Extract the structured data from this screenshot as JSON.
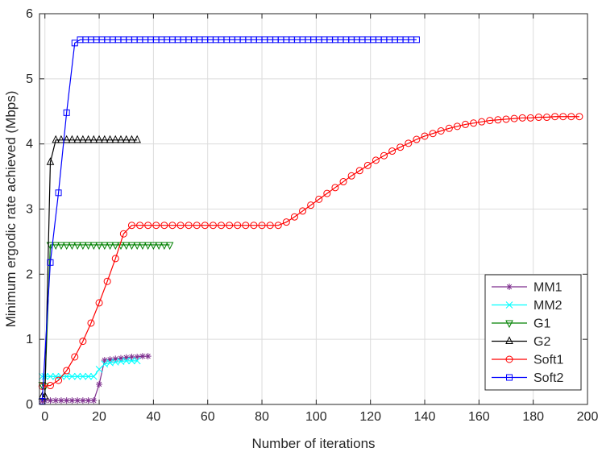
{
  "chart_data": {
    "type": "line",
    "title": "",
    "xlabel": "Number of iterations",
    "ylabel": "Minimum ergodic rate achieved (Mbps)",
    "xlim": [
      -2,
      200
    ],
    "ylim": [
      0,
      6
    ],
    "xticks": [
      0,
      20,
      40,
      60,
      80,
      100,
      120,
      140,
      160,
      180,
      200
    ],
    "yticks": [
      0,
      1,
      2,
      3,
      4,
      5,
      6
    ],
    "grid": true,
    "legend_position": "bottom-right",
    "series": [
      {
        "name": "MM1",
        "color": "#7e2f8e",
        "marker": "asterisk",
        "x": [
          -1,
          0,
          2,
          4,
          6,
          8,
          10,
          12,
          14,
          16,
          18,
          20,
          22,
          24,
          26,
          28,
          30,
          32,
          34,
          36,
          38
        ],
        "y": [
          0.05,
          0.06,
          0.06,
          0.06,
          0.06,
          0.06,
          0.06,
          0.06,
          0.06,
          0.06,
          0.06,
          0.31,
          0.68,
          0.69,
          0.7,
          0.71,
          0.72,
          0.73,
          0.73,
          0.74,
          0.74
        ]
      },
      {
        "name": "MM2",
        "color": "#00ffff",
        "marker": "x",
        "x": [
          -1,
          0,
          2,
          4,
          6,
          8,
          10,
          12,
          14,
          16,
          18,
          20,
          22,
          24,
          26,
          28,
          30,
          32,
          34
        ],
        "y": [
          0.43,
          0.43,
          0.43,
          0.43,
          0.43,
          0.43,
          0.43,
          0.43,
          0.43,
          0.43,
          0.43,
          0.54,
          0.62,
          0.64,
          0.65,
          0.66,
          0.67,
          0.67,
          0.67
        ]
      },
      {
        "name": "G1",
        "color": "#008000",
        "marker": "triangle-down",
        "x": [
          -1,
          0,
          2,
          4,
          6,
          8,
          10,
          12,
          14,
          16,
          18,
          20,
          22,
          24,
          26,
          28,
          30,
          32,
          34,
          36,
          38,
          40,
          42,
          44,
          46
        ],
        "y": [
          0.3,
          0.28,
          2.45,
          2.45,
          2.45,
          2.45,
          2.45,
          2.45,
          2.45,
          2.45,
          2.45,
          2.45,
          2.45,
          2.45,
          2.45,
          2.45,
          2.45,
          2.45,
          2.45,
          2.45,
          2.45,
          2.45,
          2.45,
          2.45,
          2.45
        ]
      },
      {
        "name": "G2",
        "color": "#000000",
        "marker": "triangle-up",
        "x": [
          -1,
          0,
          2,
          4,
          6,
          8,
          10,
          12,
          14,
          16,
          18,
          20,
          22,
          24,
          26,
          28,
          30,
          32,
          34
        ],
        "y": [
          0.12,
          0.12,
          3.72,
          4.06,
          4.06,
          4.06,
          4.06,
          4.06,
          4.06,
          4.06,
          4.06,
          4.06,
          4.06,
          4.06,
          4.06,
          4.06,
          4.06,
          4.06,
          4.06
        ]
      },
      {
        "name": "Soft1",
        "color": "#ff0000",
        "marker": "circle",
        "x": [
          -1,
          2,
          5,
          8,
          11,
          14,
          17,
          20,
          23,
          26,
          29,
          32,
          35,
          38,
          41,
          44,
          47,
          50,
          53,
          56,
          59,
          62,
          65,
          68,
          71,
          74,
          77,
          80,
          83,
          86,
          89,
          92,
          95,
          98,
          101,
          104,
          107,
          110,
          113,
          116,
          119,
          122,
          125,
          128,
          131,
          134,
          137,
          140,
          143,
          146,
          149,
          152,
          155,
          158,
          161,
          164,
          167,
          170,
          173,
          176,
          179,
          182,
          185,
          188,
          191,
          194,
          197
        ],
        "y": [
          0.28,
          0.29,
          0.37,
          0.52,
          0.73,
          0.97,
          1.25,
          1.56,
          1.89,
          2.24,
          2.62,
          2.75,
          2.75,
          2.75,
          2.75,
          2.75,
          2.75,
          2.75,
          2.75,
          2.75,
          2.75,
          2.75,
          2.75,
          2.75,
          2.75,
          2.75,
          2.75,
          2.75,
          2.75,
          2.75,
          2.8,
          2.88,
          2.97,
          3.06,
          3.15,
          3.24,
          3.33,
          3.42,
          3.51,
          3.59,
          3.67,
          3.75,
          3.82,
          3.89,
          3.95,
          4.01,
          4.07,
          4.12,
          4.16,
          4.2,
          4.24,
          4.27,
          4.3,
          4.32,
          4.34,
          4.36,
          4.37,
          4.38,
          4.39,
          4.4,
          4.4,
          4.41,
          4.41,
          4.42,
          4.42,
          4.42,
          4.42
        ]
      },
      {
        "name": "Soft2",
        "color": "#0000ff",
        "marker": "square",
        "x": [
          -1,
          2,
          5,
          8,
          11,
          13,
          15,
          17,
          19,
          21,
          23,
          25,
          27,
          29,
          31,
          33,
          35,
          37,
          39,
          41,
          43,
          45,
          47,
          49,
          51,
          53,
          55,
          57,
          59,
          61,
          63,
          65,
          67,
          69,
          71,
          73,
          75,
          77,
          79,
          81,
          83,
          85,
          87,
          89,
          91,
          93,
          95,
          97,
          99,
          101,
          103,
          105,
          107,
          109,
          111,
          113,
          115,
          117,
          119,
          121,
          123,
          125,
          127,
          129,
          131,
          133,
          135,
          137
        ],
        "y": [
          0.05,
          2.18,
          3.25,
          4.48,
          5.55,
          5.6,
          5.6,
          5.6,
          5.6,
          5.6,
          5.6,
          5.6,
          5.6,
          5.6,
          5.6,
          5.6,
          5.6,
          5.6,
          5.6,
          5.6,
          5.6,
          5.6,
          5.6,
          5.6,
          5.6,
          5.6,
          5.6,
          5.6,
          5.6,
          5.6,
          5.6,
          5.6,
          5.6,
          5.6,
          5.6,
          5.6,
          5.6,
          5.6,
          5.6,
          5.6,
          5.6,
          5.6,
          5.6,
          5.6,
          5.6,
          5.6,
          5.6,
          5.6,
          5.6,
          5.6,
          5.6,
          5.6,
          5.6,
          5.6,
          5.6,
          5.6,
          5.6,
          5.6,
          5.6,
          5.6,
          5.6,
          5.6,
          5.6,
          5.6,
          5.6,
          5.6,
          5.6,
          5.6
        ]
      }
    ]
  }
}
